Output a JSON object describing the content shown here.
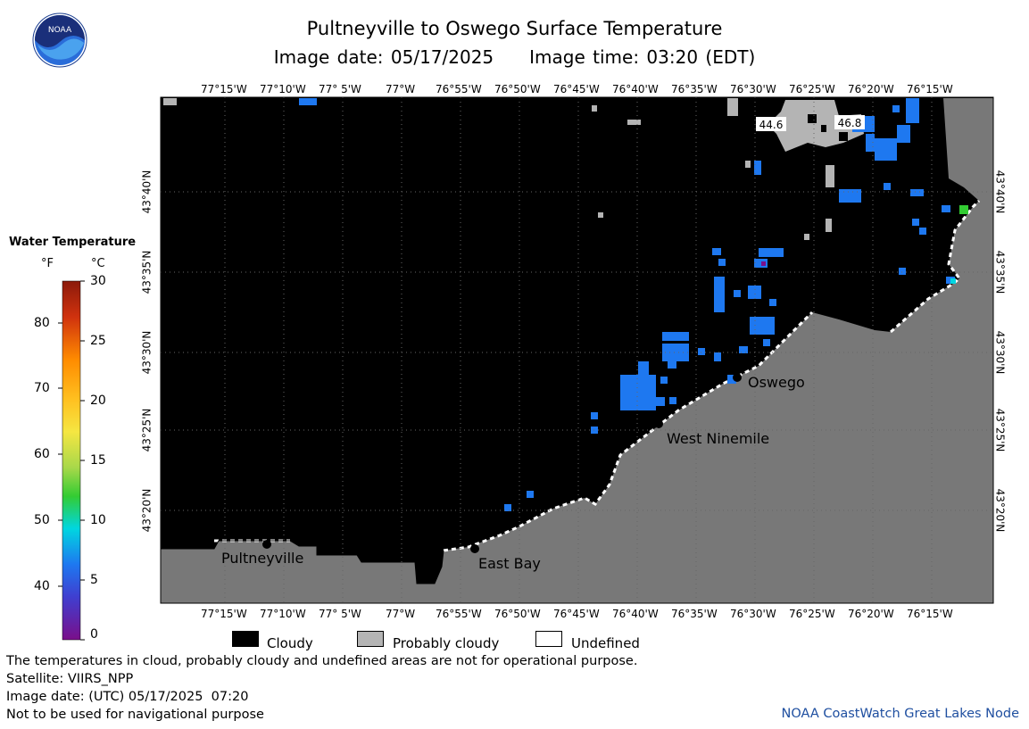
{
  "title": "Pultneyville to Oswego Surface Temperature",
  "image_date_label": "Image date: 05/17/2025",
  "image_time_label": "Image time: 03:20 (EDT)",
  "logo_text": "NOAA",
  "longitude_ticks": [
    "77°15'W",
    "77°10'W",
    "77° 5'W",
    "77°W",
    "76°55'W",
    "76°50'W",
    "76°45'W",
    "76°40'W",
    "76°35'W",
    "76°30'W",
    "76°25'W",
    "76°20'W",
    "76°15'W"
  ],
  "latitude_ticks": [
    "43°20'N",
    "43°25'N",
    "43°30'N",
    "43°35'N",
    "43°40'N"
  ],
  "cities": [
    {
      "name": "Pultneyville"
    },
    {
      "name": "East Bay"
    },
    {
      "name": "West Ninemile"
    },
    {
      "name": "Oswego"
    }
  ],
  "buoy_readings": [
    "44.6",
    "46.8"
  ],
  "legend": {
    "title": "Water Temperature",
    "unit_f": "°F",
    "unit_c": "°C",
    "f_ticks": [
      "40",
      "50",
      "60",
      "70",
      "80"
    ],
    "c_ticks": [
      "0",
      "5",
      "10",
      "15",
      "20",
      "25",
      "30"
    ],
    "colors": {
      "top": "#8b1a0b",
      "orange": "#ff8c00",
      "yellow": "#f5e642",
      "green": "#33cc33",
      "cyan": "#00d6e0",
      "blue": "#1e6ff0",
      "bottom": "#7a0f8a"
    }
  },
  "key": [
    {
      "label": "Cloudy",
      "color": "#000000"
    },
    {
      "label": "Probably cloudy",
      "color": "#b4b4b4"
    },
    {
      "label": "Undefined",
      "color": "#ffffff"
    }
  ],
  "notes": {
    "disclaimer": "The temperatures in cloud, probably cloudy and undefined areas are not for operational purpose.",
    "satellite": "Satellite: VIIRS_NPP",
    "utc_date": "Image date: (UTC) 05/17/2025  07:20",
    "navigation": "Not to be used for navigational purpose",
    "credit": "NOAA CoastWatch Great Lakes Node"
  },
  "colors": {
    "land": "#787878",
    "cloud": "#000000",
    "probably_cloudy": "#b4b4b4",
    "water_blue": "#1e78f0",
    "credit_blue": "#1f4fa0"
  }
}
